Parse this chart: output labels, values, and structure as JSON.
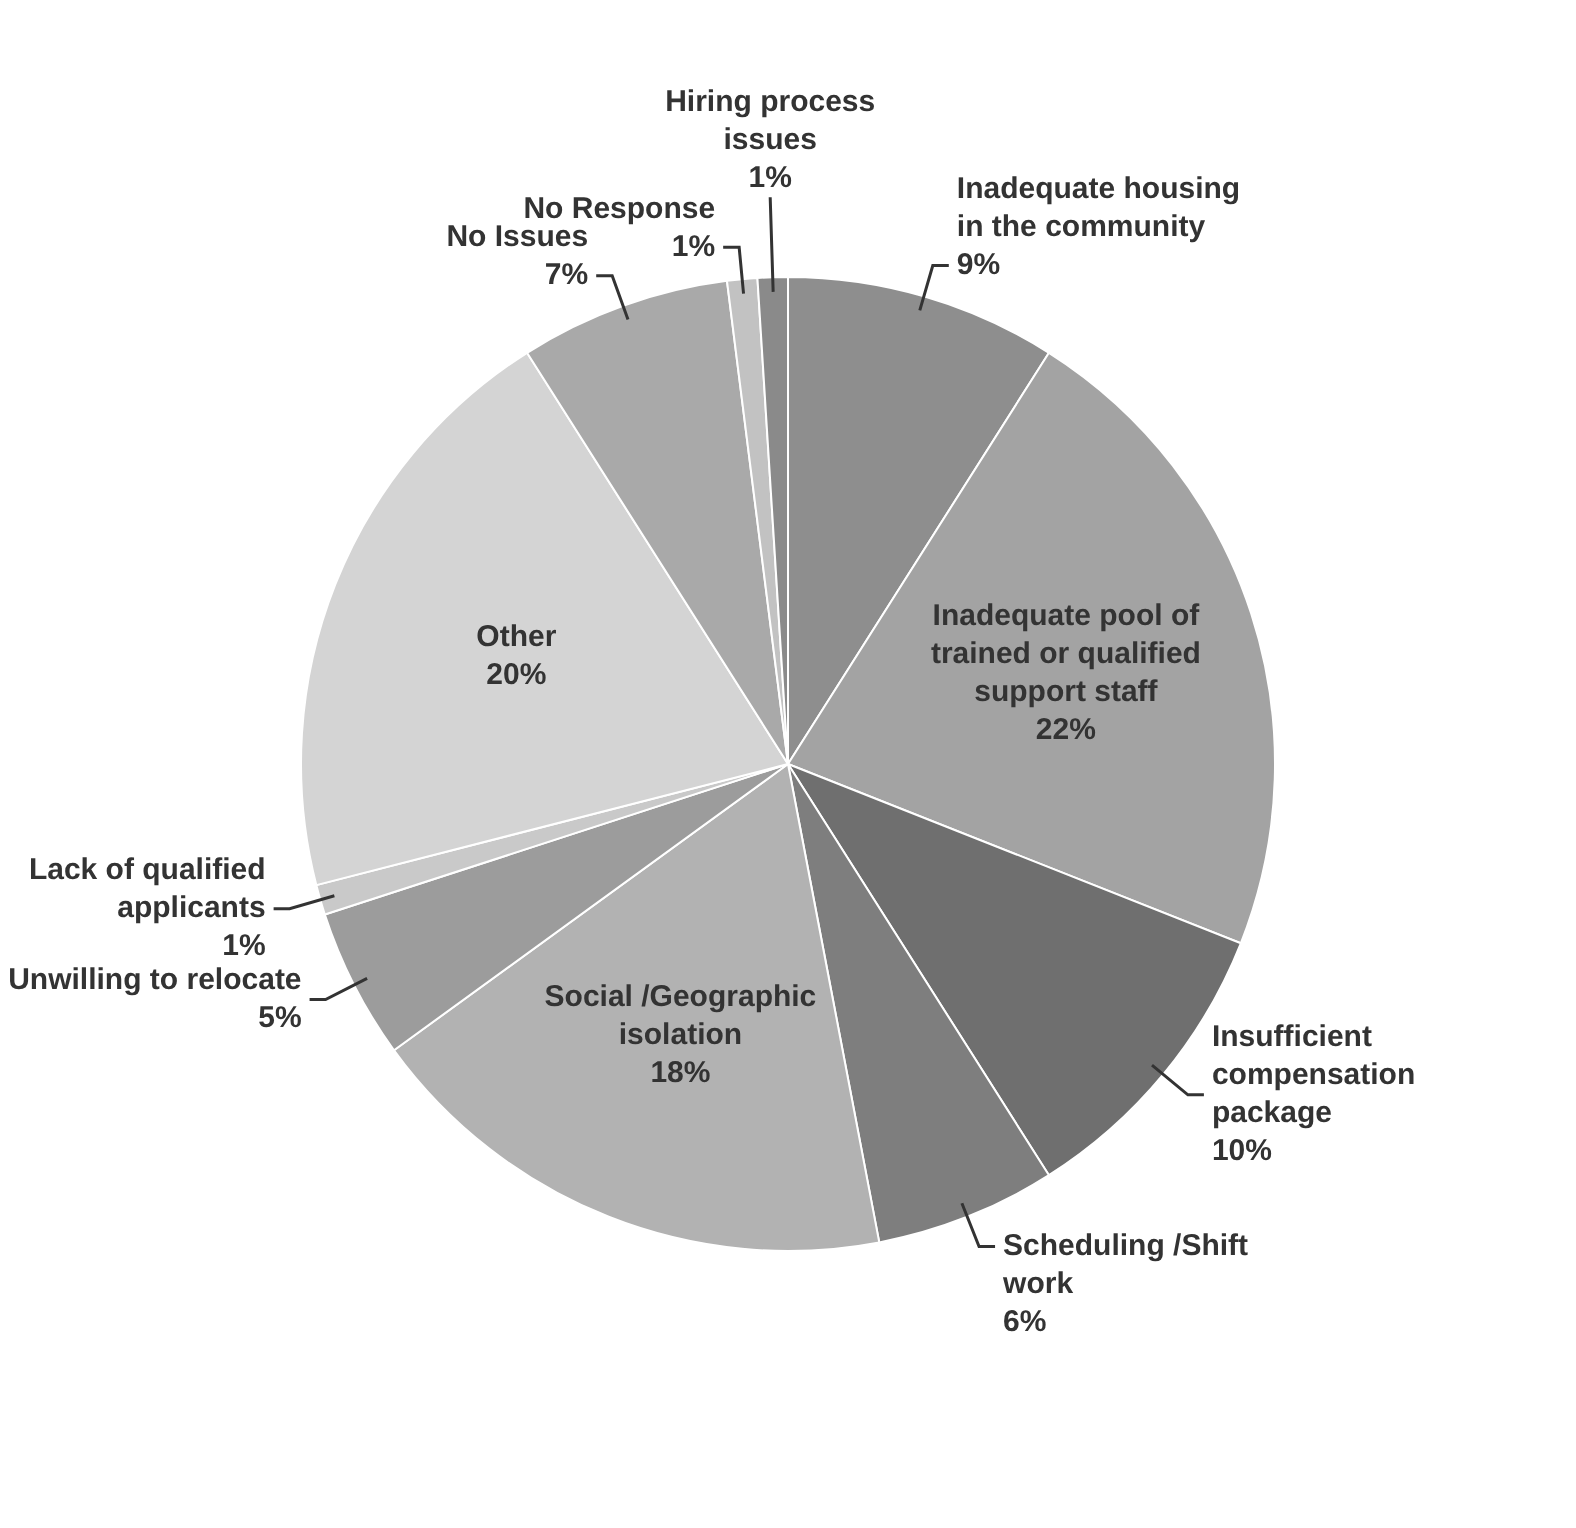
{
  "chart_data": {
    "type": "pie",
    "categories": [
      "Inadequate housing in the community",
      "Inadequate pool of trained or qualified support staff",
      "Insufficient compensation package",
      "Scheduling /Shift work",
      "Social /Geographic isolation",
      "Unwilling to relocate",
      "Lack of qualified applicants",
      "Other",
      "No Issues",
      "No Response",
      "Hiring process issues"
    ],
    "values": [
      9,
      22,
      10,
      6,
      18,
      5,
      1,
      20,
      7,
      1,
      1
    ],
    "value_labels": [
      "9%",
      "22%",
      "10%",
      "6%",
      "18%",
      "5%",
      "1%",
      "20%",
      "7%",
      "1%",
      "1%"
    ],
    "colors": [
      "#8e8e8e",
      "#a3a3a3",
      "#6f6f6f",
      "#7e7e7e",
      "#b2b2b2",
      "#9c9c9c",
      "#c9c9c9",
      "#d4d4d4",
      "#a9a9a9",
      "#c2c2c2",
      "#8a8a8a"
    ],
    "legend": false
  }
}
